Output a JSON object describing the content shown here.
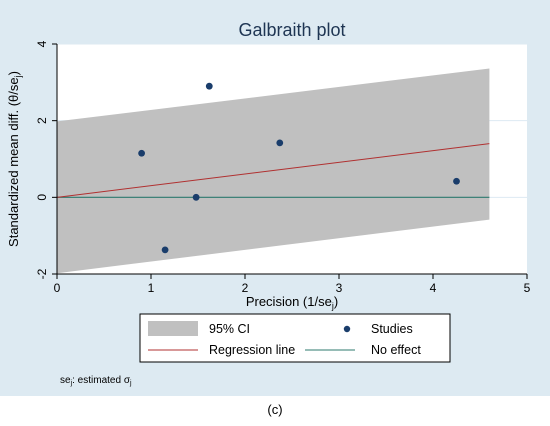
{
  "chart_data": {
    "type": "scatter",
    "title": "Galbraith plot",
    "xlabel": "Precision (1/se",
    "xlabel_sub": "j",
    "xlabel_end": ")",
    "ylabel": "Standardized mean diff. (θ/se",
    "ylabel_sub": "j",
    "ylabel_end": ")",
    "xlim": [
      0,
      5
    ],
    "ylim": [
      -2,
      4
    ],
    "xticks": [
      "0",
      "1",
      "2",
      "3",
      "4",
      "5"
    ],
    "yticks": [
      "-2",
      "0",
      "2",
      "4"
    ],
    "grid": "horizontal",
    "legend_position": "bottom",
    "series": [
      {
        "name": "Studies",
        "x": [
          0.9,
          1.15,
          1.48,
          1.62,
          2.37,
          4.25
        ],
        "y": [
          1.15,
          -1.37,
          0.0,
          2.9,
          1.42,
          0.42
        ]
      }
    ],
    "regression_line": {
      "name": "Regression line",
      "x": [
        0,
        4.6
      ],
      "y": [
        0,
        1.4
      ]
    },
    "no_effect_line": {
      "name": "No effect",
      "y": 0
    },
    "ci_band": {
      "name": "95% CI",
      "x": [
        0,
        4.6
      ],
      "upper": [
        1.98,
        3.36
      ],
      "lower": [
        -1.98,
        -0.58
      ]
    },
    "legend": [
      "95% CI",
      "Studies",
      "Regression line",
      "No effect"
    ],
    "colors": {
      "outer_bg": "#ddeaf2",
      "plot_bg": "#ffffff",
      "band": "#c0c0c0",
      "points": "#1a3d6b",
      "regression": "#b03030",
      "no_effect": "#2d7a6e",
      "grid": "#ddeaf2"
    }
  },
  "footnote": {
    "prefix": "se",
    "prefix_sub": "j",
    "text": ": estimated σ",
    "text_sub": "j"
  },
  "caption": "(c)"
}
